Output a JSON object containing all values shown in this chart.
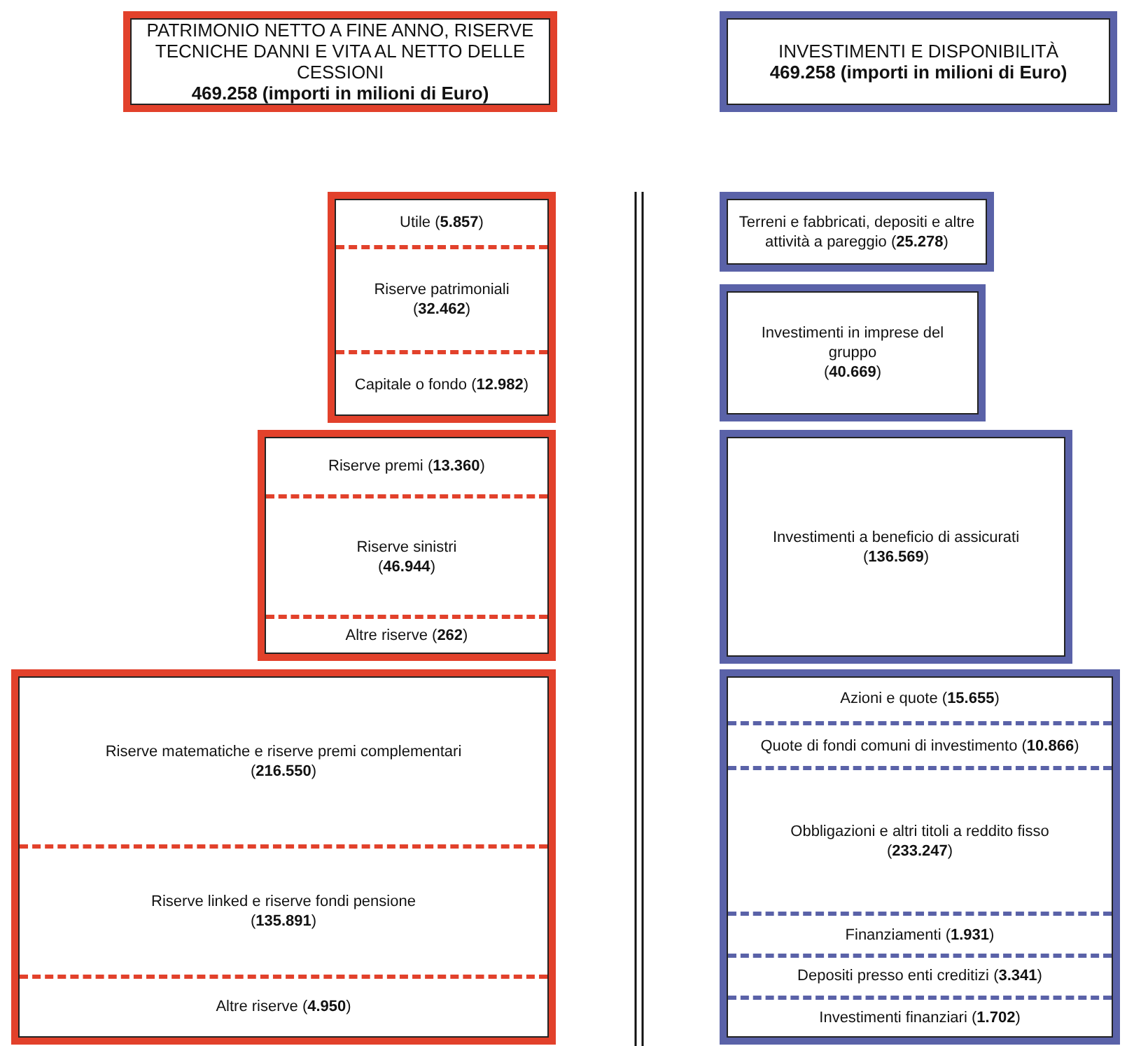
{
  "chart_data": [
    {
      "type": "other",
      "title": "PATRIMONIO NETTO A FINE ANNO, RISERVE TECNICHE DANNI E VITA AL NETTO DELLE CESSIONI",
      "subtitle": "469.258 (importi in milioni di Euro)",
      "color": "#e2412b",
      "categories": [
        "Utile",
        "Riserve patrimoniali",
        "Capitale o fondo"
      ],
      "values": [
        5857,
        32462,
        12982
      ],
      "value_labels": [
        "(5.857)",
        "(32.462)",
        "(12.982)"
      ]
    },
    {
      "type": "other",
      "color": "#e2412b",
      "categories": [
        "Riserve premi",
        "Riserve sinistri",
        "Altre riserve"
      ],
      "values": [
        13360,
        46944,
        262
      ],
      "value_labels": [
        "(13.360)",
        "(46.944)",
        "(262)"
      ]
    },
    {
      "type": "other",
      "color": "#e2412b",
      "categories": [
        "Riserve matematiche e riserve premi complementari",
        "Riserve linked e riserve fondi pensione",
        "Altre riserve"
      ],
      "values": [
        216550,
        135891,
        4950
      ],
      "value_labels": [
        "(216.550)",
        "(135.891)",
        "(4.950)"
      ]
    },
    {
      "type": "other",
      "title": "INVESTIMENTI E DISPONIBILITÀ",
      "subtitle": "469.258 (importi in milioni di Euro)",
      "color": "#5a62a8",
      "categories": [
        "Terreni e fabbricati, depositi e altre attività a pareggio"
      ],
      "values": [
        25278
      ],
      "value_labels": [
        "(25.278)"
      ]
    },
    {
      "type": "other",
      "color": "#5a62a8",
      "categories": [
        "Investimenti in imprese del gruppo"
      ],
      "values": [
        40669
      ],
      "value_labels": [
        "(40.669)"
      ]
    },
    {
      "type": "other",
      "color": "#5a62a8",
      "categories": [
        "Investimenti a beneficio di assicurati"
      ],
      "values": [
        136569
      ],
      "value_labels": [
        "(136.569)"
      ]
    },
    {
      "type": "other",
      "color": "#5a62a8",
      "categories": [
        "Azioni e quote",
        "Quote di fondi comuni di investimento",
        "Obbligazioni e altri titoli a reddito fisso",
        "Finanziamenti",
        "Depositi presso enti creditizi",
        "Investimenti finanziari"
      ],
      "values": [
        15655,
        10866,
        233247,
        1931,
        3341,
        1702
      ],
      "value_labels": [
        "(15.655)",
        "(10.866)",
        "(233.247)",
        "(1.931)",
        "(3.341)",
        "(1.702)"
      ]
    }
  ]
}
